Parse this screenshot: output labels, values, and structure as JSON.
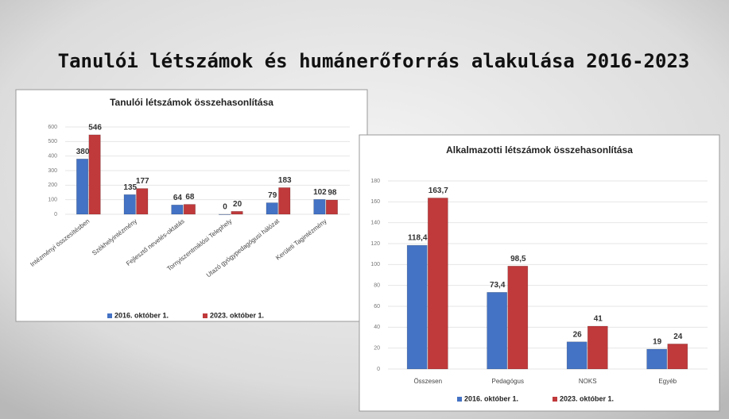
{
  "title": "Tanulói létszámok és humánerőforrás alakulása 2016-2023",
  "chart_data": [
    {
      "type": "bar",
      "title": "Tanulói létszámok összehasonlítása",
      "categories": [
        "Intézményi összesítésben",
        "Székhelyintézmény",
        "Fejlesztő nevelés-oktatás",
        "Tornyiszentmiklósi Telephely",
        "Utazó gyógypedagógusi hálózat",
        "Kerületi Tagintézmény"
      ],
      "series": [
        {
          "name": "2016. október 1.",
          "color": "#4472c4",
          "values": [
            380,
            135,
            64,
            0,
            79,
            102
          ]
        },
        {
          "name": "2023. október 1.",
          "color": "#c0393b",
          "values": [
            546,
            177,
            68,
            20,
            183,
            98
          ]
        }
      ],
      "ylim": [
        0,
        600
      ],
      "yticks": [
        0,
        100,
        200,
        300,
        400,
        500,
        600
      ],
      "grid": true,
      "legend": "bottom"
    },
    {
      "type": "bar",
      "title": "Alkalmazotti létszámok összehasonlítása",
      "categories": [
        "Összesen",
        "Pedagógus",
        "NOKS",
        "Egyéb"
      ],
      "series": [
        {
          "name": "2016. október 1.",
          "color": "#4472c4",
          "values": [
            118.4,
            73.4,
            26,
            19
          ],
          "value_labels": [
            "118,4",
            "73,4",
            "26",
            "19"
          ]
        },
        {
          "name": "2023. október 1.",
          "color": "#c0393b",
          "values": [
            163.7,
            98.5,
            41,
            24
          ],
          "value_labels": [
            "163,7",
            "98,5",
            "41",
            "24"
          ]
        }
      ],
      "ylim": [
        0,
        180
      ],
      "yticks": [
        0,
        20,
        40,
        60,
        80,
        100,
        120,
        140,
        160,
        180
      ],
      "grid": true,
      "legend": "bottom"
    }
  ]
}
